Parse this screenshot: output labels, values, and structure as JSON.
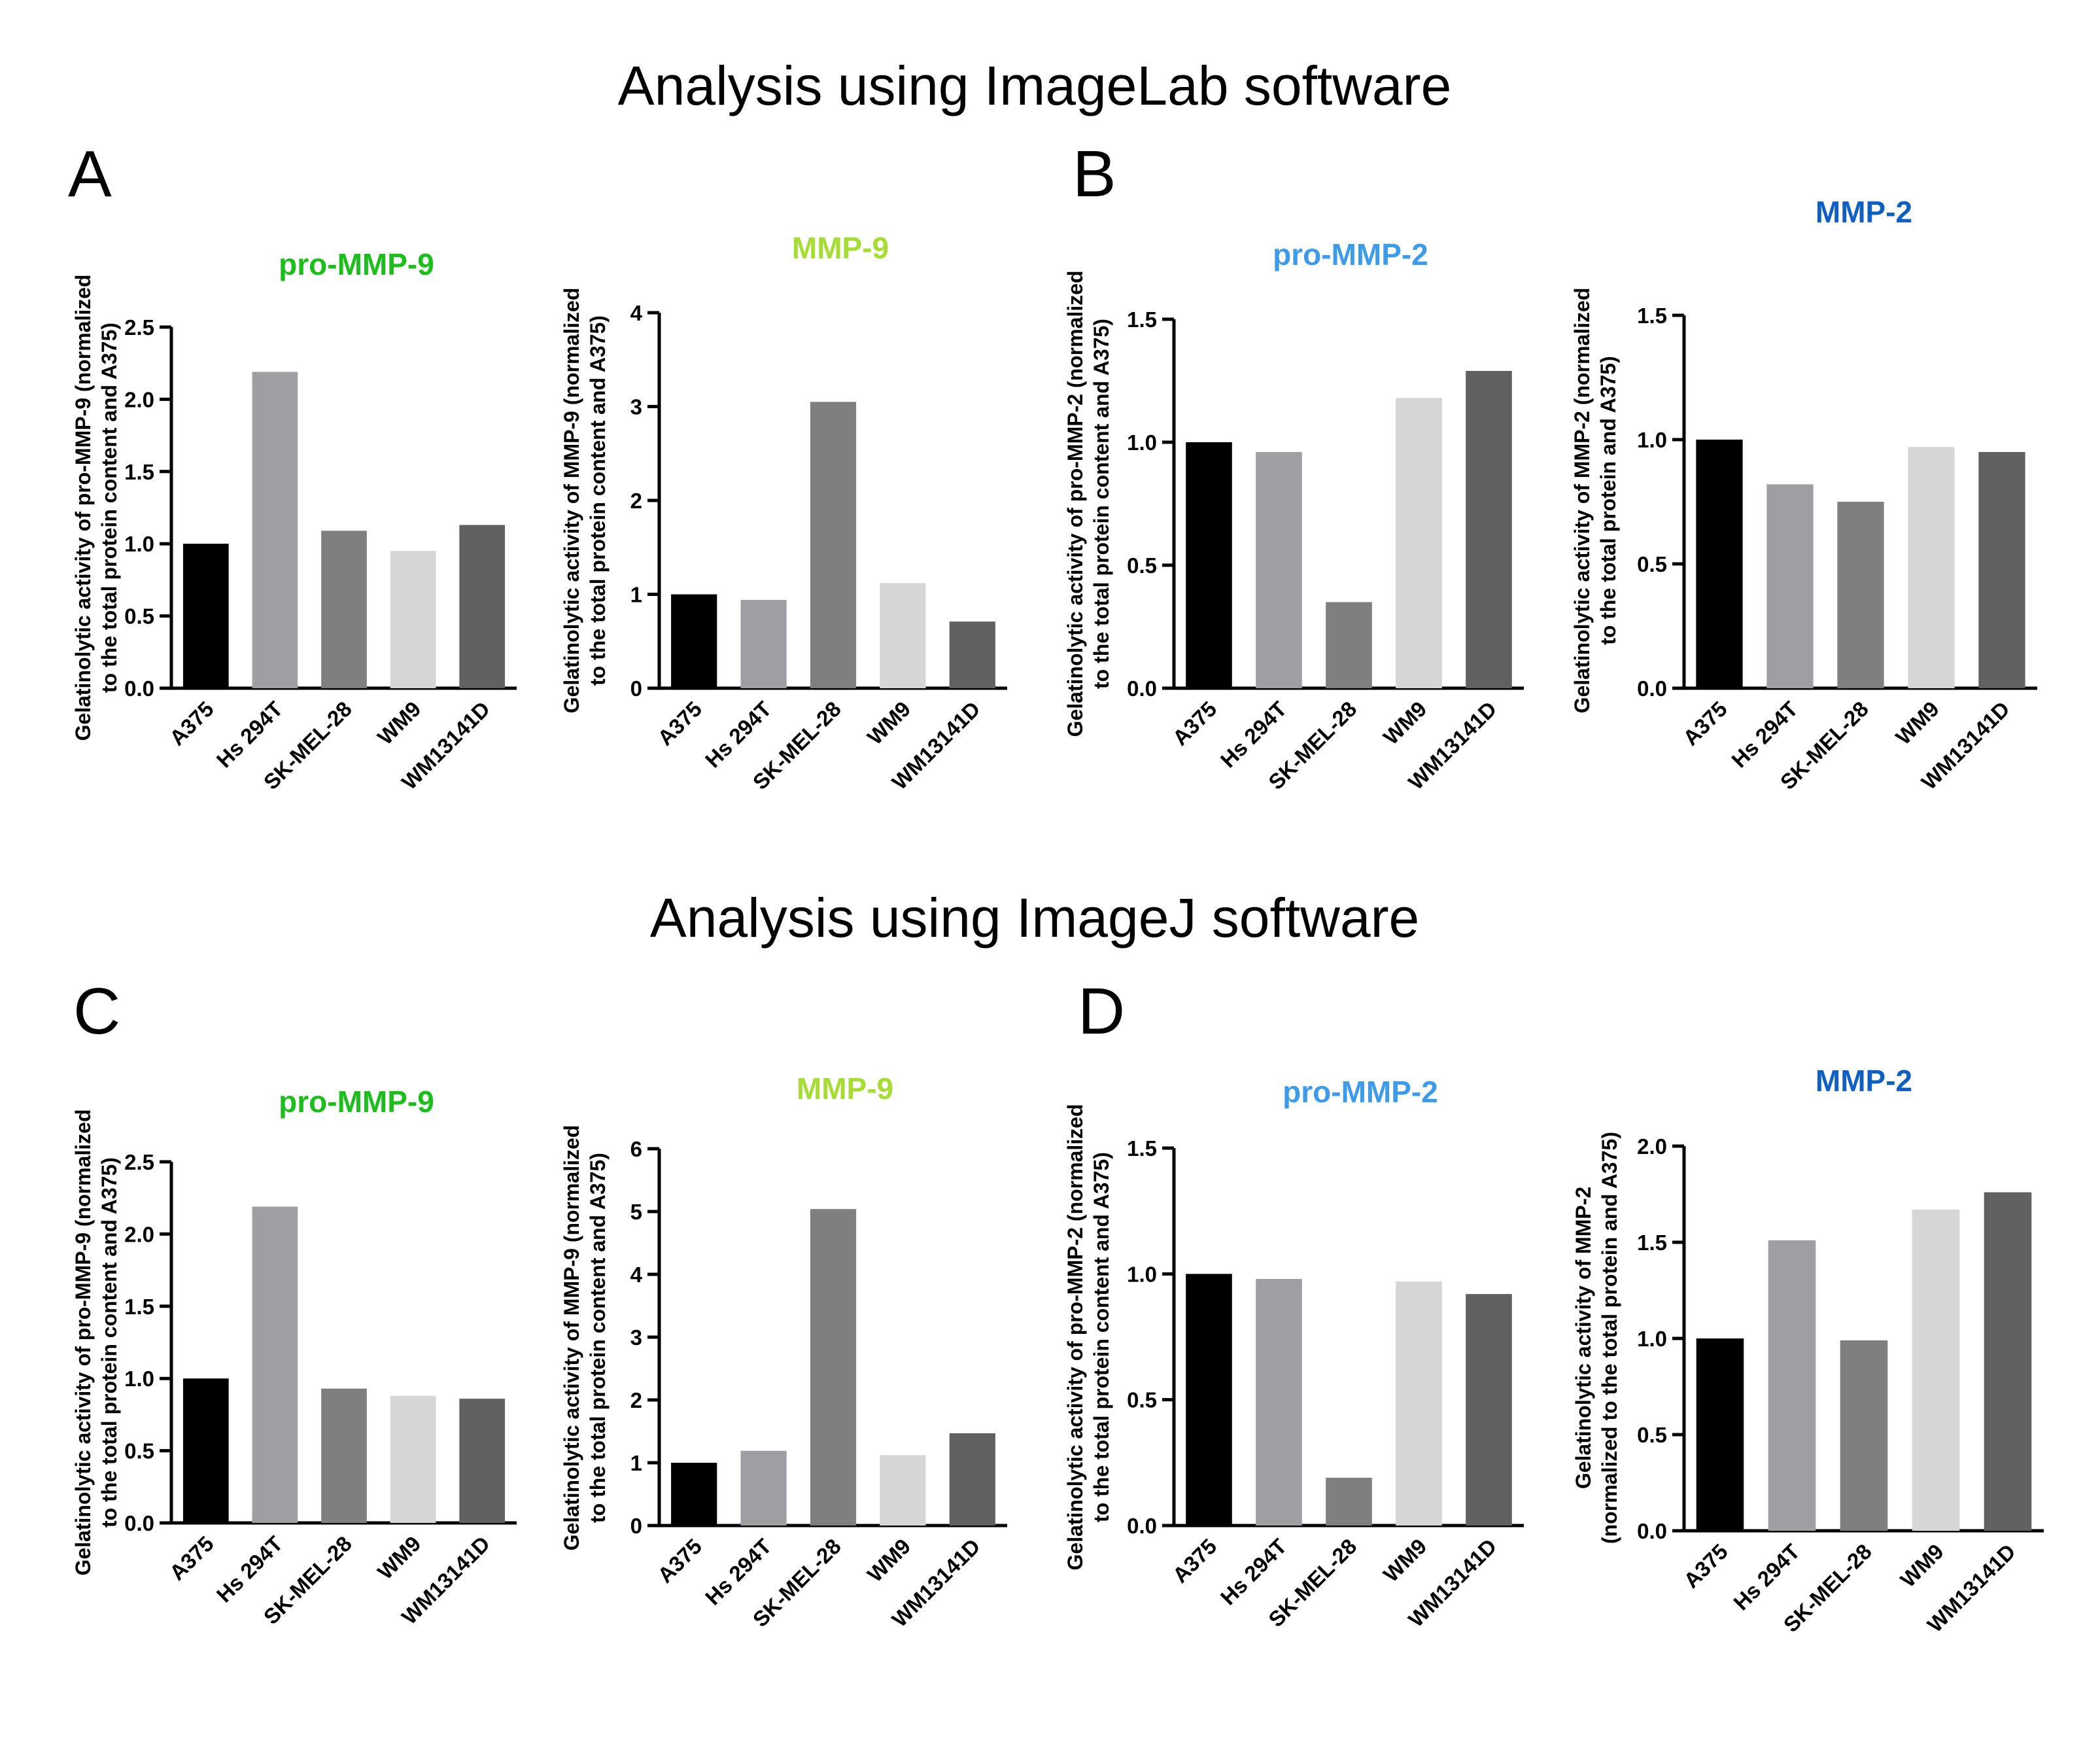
{
  "figure": {
    "section_titles": [
      "Analysis using ImageLab software",
      "Analysis using ImageJ software"
    ],
    "panel_letters": [
      "A",
      "B",
      "C",
      "D"
    ]
  },
  "colors": {
    "pro_mmp9": "#1ebd1e",
    "mmp9": "#a6dc33",
    "pro_mmp2": "#3d9be9",
    "mmp2": "#1060c4",
    "bars": [
      "#000000",
      "#9e9ea3",
      "#7f7f7f",
      "#d6d6d6",
      "#616161"
    ]
  },
  "chart_data": [
    {
      "type": "bar",
      "title": "pro-MMP-9",
      "title_color": "#1ebd1e",
      "ylabel": [
        "Gelatinolytic activity of pro-MMP-9 (normalized",
        "to the total protein content and A375)"
      ],
      "categories": [
        "A375",
        "Hs 294T",
        "SK-MEL-28",
        "WM9",
        "WM13141D"
      ],
      "values": [
        1.0,
        2.19,
        1.09,
        0.95,
        1.13
      ],
      "ylim": [
        0,
        2.5
      ],
      "yticks": [
        "0.0",
        "0.5",
        "1.0",
        "1.5",
        "2.0",
        "2.5"
      ]
    },
    {
      "type": "bar",
      "title": "MMP-9",
      "title_color": "#a6dc33",
      "ylabel": [
        "Gelatinolytic activity of MMP-9 (normalized",
        "to the total protein content and A375)"
      ],
      "categories": [
        "A375",
        "Hs 294T",
        "SK-MEL-28",
        "WM9",
        "WM13141D"
      ],
      "values": [
        1.0,
        0.94,
        3.05,
        1.12,
        0.71
      ],
      "ylim": [
        0,
        4
      ],
      "yticks": [
        "0",
        "1",
        "2",
        "3",
        "4"
      ]
    },
    {
      "type": "bar",
      "title": "pro-MMP-2",
      "title_color": "#3d9be9",
      "ylabel": [
        "Gelatinolytic activity of pro-MMP-2 (normalized",
        "to the total protein content and A375)"
      ],
      "categories": [
        "A375",
        "Hs 294T",
        "SK-MEL-28",
        "WM9",
        "WM13141D"
      ],
      "values": [
        1.0,
        0.96,
        0.35,
        1.18,
        1.29
      ],
      "ylim": [
        0,
        1.5
      ],
      "yticks": [
        "0.0",
        "0.5",
        "1.0",
        "1.5"
      ]
    },
    {
      "type": "bar",
      "title": "MMP-2",
      "title_color": "#1060c4",
      "ylabel": [
        "Gelatinolytic activity of MMP-2 (normalized",
        "to the total protein and A375)"
      ],
      "categories": [
        "A375",
        "Hs 294T",
        "SK-MEL-28",
        "WM9",
        "WM13141D"
      ],
      "values": [
        1.0,
        0.82,
        0.75,
        0.97,
        0.95
      ],
      "ylim": [
        0,
        1.5
      ],
      "yticks": [
        "0.0",
        "0.5",
        "1.0",
        "1.5"
      ]
    },
    {
      "type": "bar",
      "title": "pro-MMP-9",
      "title_color": "#1ebd1e",
      "ylabel": [
        "Gelatinolytic activity of pro-MMP-9 (normalized",
        "to the total protein content and A375)"
      ],
      "categories": [
        "A375",
        "Hs 294T",
        "SK-MEL-28",
        "WM9",
        "WM13141D"
      ],
      "values": [
        1.0,
        2.19,
        0.93,
        0.88,
        0.86
      ],
      "ylim": [
        0,
        2.5
      ],
      "yticks": [
        "0.0",
        "0.5",
        "1.0",
        "1.5",
        "2.0",
        "2.5"
      ]
    },
    {
      "type": "bar",
      "title": "MMP-9",
      "title_color": "#a6dc33",
      "ylabel": [
        "Gelatinolytic activity of MMP-9 (normalized",
        "to the total protein content and A375)"
      ],
      "categories": [
        "A375",
        "Hs 294T",
        "SK-MEL-28",
        "WM9",
        "WM13141D"
      ],
      "values": [
        1.0,
        1.19,
        5.04,
        1.12,
        1.47
      ],
      "ylim": [
        0,
        6
      ],
      "yticks": [
        "0",
        "1",
        "2",
        "3",
        "4",
        "5",
        "6"
      ]
    },
    {
      "type": "bar",
      "title": "pro-MMP-2",
      "title_color": "#3d9be9",
      "ylabel": [
        "Gelatinolytic activity of pro-MMP-2 (normalized",
        "to the total protein content and A375)"
      ],
      "categories": [
        "A375",
        "Hs 294T",
        "SK-MEL-28",
        "WM9",
        "WM13141D"
      ],
      "values": [
        1.0,
        0.98,
        0.19,
        0.97,
        0.92
      ],
      "ylim": [
        0,
        1.5
      ],
      "yticks": [
        "0.0",
        "0.5",
        "1.0",
        "1.5"
      ]
    },
    {
      "type": "bar",
      "title": "MMP-2",
      "title_color": "#1060c4",
      "ylabel": [
        "Gelatinolytic activity of MMP-2",
        "(normalized to the total protein and A375)"
      ],
      "categories": [
        "A375",
        "Hs 294T",
        "SK-MEL-28",
        "WM9",
        "WM13141D"
      ],
      "values": [
        1.0,
        1.51,
        0.99,
        1.67,
        1.76
      ],
      "ylim": [
        0,
        2.0
      ],
      "yticks": [
        "0.0",
        "0.5",
        "1.0",
        "1.5",
        "2.0"
      ]
    }
  ]
}
